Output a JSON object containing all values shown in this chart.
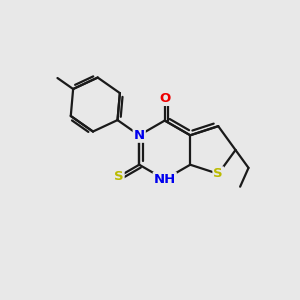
{
  "background_color": "#e8e8e8",
  "bond_color": "#1a1a1a",
  "atom_colors": {
    "N": "#0000ee",
    "O": "#ee0000",
    "S": "#bbbb00",
    "C": "#1a1a1a"
  },
  "figsize": [
    3.0,
    3.0
  ],
  "dpi": 100,
  "xlim": [
    0,
    10
  ],
  "ylim": [
    0,
    10
  ]
}
